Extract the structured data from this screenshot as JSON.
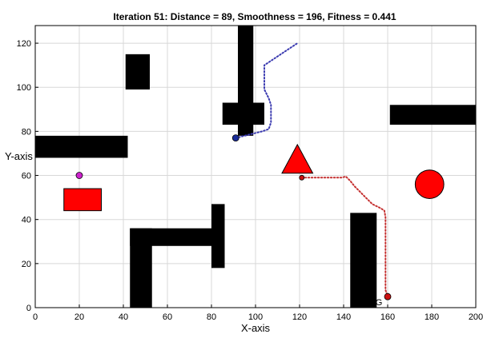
{
  "chart_data": {
    "type": "scatter",
    "title": "Iteration 51: Distance = 89, Smoothness = 196, Fitness = 0.441",
    "xlabel": "X-axis",
    "ylabel": "Y-axis",
    "xlim": [
      0,
      200
    ],
    "ylim": [
      0,
      128
    ],
    "xticks": [
      0,
      20,
      40,
      60,
      80,
      100,
      120,
      140,
      160,
      180,
      200
    ],
    "yticks": [
      0,
      20,
      40,
      60,
      80,
      100,
      120
    ],
    "grid": true,
    "obstacles": [
      {
        "name": "obstacle-left-bar",
        "x": 0,
        "y": 68,
        "w": 42,
        "h": 10
      },
      {
        "name": "obstacle-small-square",
        "x": 41,
        "y": 99,
        "w": 11,
        "h": 16
      },
      {
        "name": "obstacle-t-vertical",
        "x": 92,
        "y": 78,
        "w": 7,
        "h": 50
      },
      {
        "name": "obstacle-t-horizontal",
        "x": 85,
        "y": 83,
        "w": 19,
        "h": 10
      },
      {
        "name": "obstacle-right-bar",
        "x": 161,
        "y": 83,
        "w": 39,
        "h": 9
      },
      {
        "name": "obstacle-bottom-left-vertical",
        "x": 43,
        "y": 0,
        "w": 10,
        "h": 36
      },
      {
        "name": "obstacle-bottom-horizontal",
        "x": 43,
        "y": 28,
        "w": 43,
        "h": 8
      },
      {
        "name": "obstacle-bottom-right-post",
        "x": 80,
        "y": 18,
        "w": 6,
        "h": 29
      },
      {
        "name": "obstacle-bottom-tall",
        "x": 143,
        "y": 0,
        "w": 12,
        "h": 43
      }
    ],
    "red_shapes": {
      "rectangle": {
        "x": 13,
        "y": 44,
        "w": 17,
        "h": 10
      },
      "triangle": {
        "cx": 119,
        "base_y": 61,
        "top_y": 74,
        "half_width": 7
      },
      "circle": {
        "cx": 179,
        "cy": 56,
        "r": 6.5
      }
    },
    "magenta_point": {
      "x": 20,
      "y": 60
    },
    "blue_path": {
      "start": {
        "x": 91,
        "y": 77
      },
      "points": [
        [
          91,
          77
        ],
        [
          95,
          78
        ],
        [
          99,
          79
        ],
        [
          103,
          80
        ],
        [
          106,
          81
        ],
        [
          107,
          84
        ],
        [
          107,
          88
        ],
        [
          107,
          92
        ],
        [
          106,
          95
        ],
        [
          105,
          97
        ],
        [
          104,
          99
        ],
        [
          104,
          102
        ],
        [
          104,
          106
        ],
        [
          104,
          110
        ],
        [
          107,
          112
        ],
        [
          110,
          114
        ],
        [
          113,
          116
        ],
        [
          116,
          118
        ],
        [
          119,
          120
        ]
      ]
    },
    "red_path": {
      "start": {
        "x": 121,
        "y": 59
      },
      "end": {
        "x": 160,
        "y": 5
      },
      "end_label": "G",
      "end_label_pos": {
        "x": 156,
        "y": 1
      },
      "points": [
        [
          121,
          59
        ],
        [
          124,
          59
        ],
        [
          127,
          59
        ],
        [
          130,
          59
        ],
        [
          133,
          59
        ],
        [
          136,
          59
        ],
        [
          139,
          59
        ],
        [
          141,
          59.5
        ],
        [
          143,
          57.5
        ],
        [
          145,
          55
        ],
        [
          147,
          53
        ],
        [
          149,
          51
        ],
        [
          151,
          49
        ],
        [
          153,
          47
        ],
        [
          155,
          46
        ],
        [
          157,
          45
        ],
        [
          158.5,
          44
        ],
        [
          159,
          41
        ],
        [
          159,
          38
        ],
        [
          159,
          35
        ],
        [
          159,
          32
        ],
        [
          159,
          29
        ],
        [
          159,
          26
        ],
        [
          159,
          23
        ],
        [
          159,
          20
        ],
        [
          159,
          17
        ],
        [
          159,
          14
        ],
        [
          159,
          11
        ],
        [
          159,
          8
        ],
        [
          160,
          5
        ]
      ]
    },
    "colors": {
      "obstacle": "#000000",
      "red_shape": "#ff0000",
      "blue_path": "#3b3bb0",
      "blue_start": "#1a2d9a",
      "red_path": "#c43030",
      "red_marker": "#cc1111",
      "magenta": "#cc22cc",
      "grid": "#d8d8d8"
    }
  }
}
